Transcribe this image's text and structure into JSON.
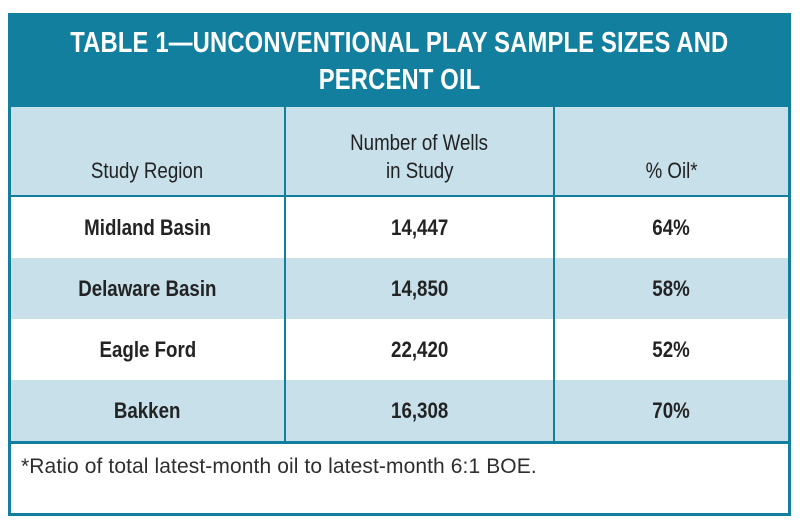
{
  "colors": {
    "teal": "#137F9E",
    "light_blue": "#C7E0EA",
    "title_text": "#FFFFFF",
    "body_text": "#252525"
  },
  "title": {
    "line1": "TABLE 1—UNCONVENTIONAL PLAY SAMPLE SIZES AND",
    "line2": "PERCENT OIL"
  },
  "columns": {
    "region": "Study Region",
    "wells_line1": "Number of Wells",
    "wells_line2": "in Study",
    "oil": "% Oil*"
  },
  "rows": [
    {
      "region": "Midland Basin",
      "wells": "14,447",
      "oil": "64%"
    },
    {
      "region": "Delaware Basin",
      "wells": "14,850",
      "oil": "58%"
    },
    {
      "region": "Eagle Ford",
      "wells": "22,420",
      "oil": "52%"
    },
    {
      "region": "Bakken",
      "wells": "16,308",
      "oil": "70%"
    }
  ],
  "footnote": "*Ratio of total latest-month oil to latest-month 6:1 BOE.",
  "chart_data": {
    "type": "table",
    "title": "TABLE 1—UNCONVENTIONAL PLAY SAMPLE SIZES AND PERCENT OIL",
    "columns": [
      "Study Region",
      "Number of Wells in Study",
      "% Oil*"
    ],
    "rows": [
      [
        "Midland Basin",
        "14,447",
        "64%"
      ],
      [
        "Delaware Basin",
        "14,850",
        "58%"
      ],
      [
        "Eagle Ford",
        "22,420",
        "52%"
      ],
      [
        "Bakken",
        "16,308",
        "70%"
      ]
    ],
    "footnote": "*Ratio of total latest-month oil to latest-month 6:1 BOE."
  }
}
